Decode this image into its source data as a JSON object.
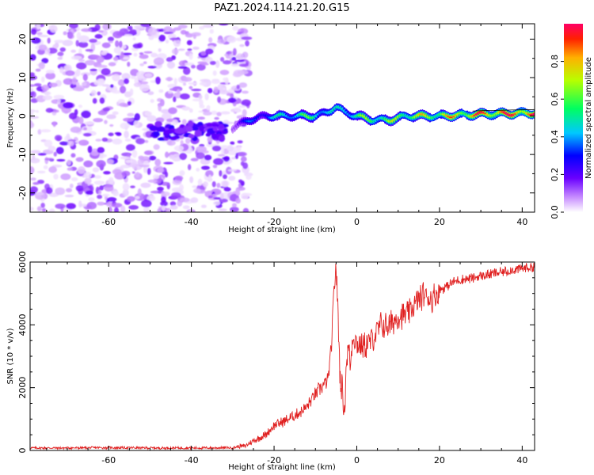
{
  "figure": {
    "title": "PAZ1.2024.114.21.20.G15"
  },
  "chart_data": [
    {
      "type": "heatmap",
      "xlabel": "Height of straight line (km)",
      "ylabel": "Frequency (Hz)",
      "xlim": [
        -79,
        43
      ],
      "ylim": [
        -25,
        24
      ],
      "x_ticks": [
        -60,
        -40,
        -20,
        0,
        20,
        40
      ],
      "y_ticks": [
        -20,
        -10,
        0,
        10,
        20
      ],
      "grid": false,
      "colorbar": {
        "label": "Normalized spectral amplitude",
        "range": [
          0,
          1
        ],
        "ticks": [
          0.0,
          0.2,
          0.4,
          0.6,
          0.8
        ],
        "colormap": [
          "#ffffff",
          "#9a00ff",
          "#0000ff",
          "#00ffff",
          "#00ff00",
          "#ffff00",
          "#ff0000",
          "#ff0066"
        ]
      },
      "ridge": {
        "description_points_x": [
          -30,
          -26,
          -22,
          -18,
          -14,
          -10,
          -7,
          -5,
          -3,
          0,
          4,
          8,
          12,
          20,
          30,
          43
        ],
        "description_points_freq": [
          -3,
          -1,
          0,
          0,
          0,
          0,
          1,
          2.5,
          1,
          0,
          -1,
          -1,
          0,
          0,
          0.5,
          0.8
        ],
        "description_points_amplitude": [
          0.15,
          0.3,
          0.35,
          0.45,
          0.5,
          0.55,
          0.45,
          0.4,
          0.5,
          0.55,
          0.6,
          0.6,
          0.65,
          0.7,
          0.85,
          0.95
        ]
      },
      "noise_region": {
        "x_range": [
          -79,
          -29
        ],
        "freq_range": [
          -25,
          24
        ],
        "amplitude_range": [
          0.02,
          0.2
        ],
        "dense_band": {
          "x_range": [
            -50,
            -32
          ],
          "freq_center": -4,
          "amplitude": 0.2
        }
      }
    },
    {
      "type": "line",
      "xlabel": "Height of straight line (km)",
      "ylabel": "SNR (10 * v/v)",
      "xlim": [
        -79,
        43
      ],
      "ylim": [
        0,
        6000
      ],
      "x_ticks": [
        -60,
        -40,
        -20,
        0,
        20,
        40
      ],
      "y_ticks": [
        0,
        2000,
        4000,
        6000
      ],
      "grid": false,
      "series": [
        {
          "color": "#e02020",
          "x": [
            -79,
            -70,
            -60,
            -50,
            -40,
            -35,
            -30,
            -27,
            -25,
            -22,
            -20,
            -18,
            -15,
            -12,
            -10,
            -8,
            -7,
            -6,
            -5.5,
            -5,
            -4.5,
            -4,
            -3.5,
            -3,
            -2.5,
            -2,
            -1.5,
            -1,
            0,
            2,
            4,
            6,
            8,
            10,
            12,
            14,
            16,
            18,
            20,
            24,
            28,
            32,
            36,
            40,
            43
          ],
          "y": [
            80,
            80,
            90,
            80,
            80,
            80,
            90,
            150,
            300,
            500,
            800,
            900,
            1100,
            1400,
            1800,
            2100,
            2200,
            3500,
            5200,
            5900,
            4200,
            2200,
            2000,
            1200,
            2900,
            3300,
            2700,
            3700,
            3400,
            3300,
            3600,
            4000,
            4000,
            4300,
            4300,
            4600,
            5000,
            4800,
            5100,
            5400,
            5500,
            5600,
            5700,
            5800,
            5850
          ]
        }
      ]
    }
  ]
}
